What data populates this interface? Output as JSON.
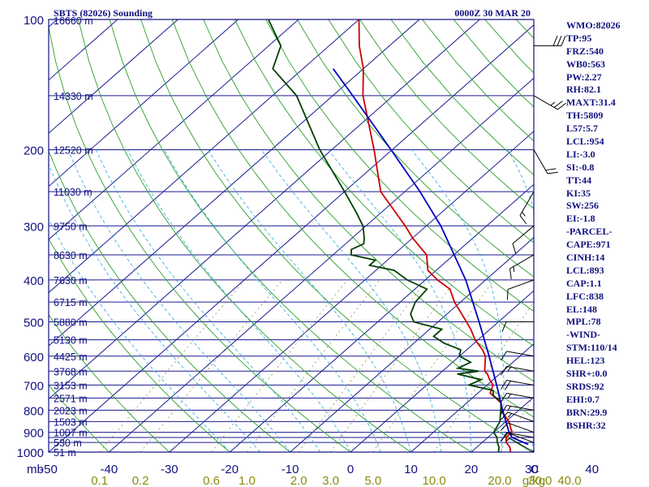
{
  "title": {
    "station": "SBTS (82026) Sounding",
    "time": "0000Z 30 MAR 20"
  },
  "colors": {
    "frame": "#101080",
    "isobar": "#1a1a90",
    "isotherm": "#1a1a90",
    "dry_adiabat": "#2aa02a",
    "moist_adiabat": "#40b0e0",
    "mixing_ratio": "#909050",
    "temperature": "#cc0000",
    "dewpoint": "#004000",
    "parcel": "#0000c0",
    "barb": "#000000"
  },
  "axes": {
    "pressure_unit_label": "mb",
    "pressure_labels": [
      100,
      200,
      300,
      400,
      500,
      600,
      700,
      800,
      900,
      1000
    ],
    "isobar_levels": [
      100,
      150,
      200,
      250,
      300,
      350,
      400,
      450,
      500,
      550,
      600,
      650,
      700,
      750,
      800,
      850,
      900,
      925,
      950,
      1000
    ],
    "height_labels": [
      {
        "p": 150,
        "text": "14330 m"
      },
      {
        "p": 200,
        "text": "12520 m"
      },
      {
        "p": 250,
        "text": "11030 m"
      },
      {
        "p": 300,
        "text": "9750 m"
      },
      {
        "p": 350,
        "text": "8630 m"
      },
      {
        "p": 400,
        "text": "7630 m"
      },
      {
        "p": 450,
        "text": "6715 m"
      },
      {
        "p": 500,
        "text": "5880 m"
      },
      {
        "p": 550,
        "text": "5130 m"
      },
      {
        "p": 600,
        "text": "4425 m"
      },
      {
        "p": 650,
        "text": "3768 m"
      },
      {
        "p": 700,
        "text": "3153 m"
      },
      {
        "p": 750,
        "text": "2571 m"
      },
      {
        "p": 800,
        "text": "2023 m"
      },
      {
        "p": 850,
        "text": "1503 m"
      },
      {
        "p": 900,
        "text": "1007 m"
      },
      {
        "p": 950,
        "text": "530 m"
      },
      {
        "p": 1000,
        "text": "51 m"
      }
    ],
    "top_height_label": "16660 m",
    "temperature_labels": [
      -50,
      -40,
      -30,
      -20,
      -10,
      0,
      10,
      20,
      30,
      40
    ],
    "temperature_end_label": "C",
    "mixing_ratio_labels": [
      "0.1",
      "0.2",
      "0.6",
      "1.0",
      "2.0",
      "3.0",
      "5.0",
      "10.0",
      "20.0",
      "30.0",
      "40.0"
    ],
    "mixing_ratio_unit": "g/kg",
    "skew_deg_per_log_decade": 81.4
  },
  "indices": [
    "WMO:82026",
    "TP:95",
    "FRZ:540",
    "WB0:563",
    "PW:2.27",
    "RH:82.1",
    "MAXT:31.4",
    "TH:5809",
    "L57:5.7",
    "LCL:954",
    "LI:-3.0",
    "SI:-0.8",
    "TT:44",
    "KI:35",
    "SW:256",
    "EI:-1.8",
    "-PARCEL-",
    "CAPE:971",
    "CINH:14",
    "LCL:893",
    "CAP:1.1",
    "LFC:838",
    "EL:148",
    "MPL:78",
    "-WIND-",
    "STM:110/14",
    "HEL:123",
    "SHR+:0.0",
    "SRDS:92",
    "EHI:0.7",
    "BRN:29.9",
    "BSHR:32"
  ],
  "chart_data": {
    "type": "skew-T log-P sounding",
    "title": "SBTS (82026) Sounding",
    "valid_time": "0000Z 30 MAR 20",
    "xlabel": "C",
    "ylabel": "mb",
    "ylim_mb": [
      1000,
      100
    ],
    "xlim_C_at_1000mb": [
      -50,
      30
    ],
    "series": [
      {
        "key": "temperature",
        "points": [
          [
            1000,
            26.5
          ],
          [
            975,
            25.5
          ],
          [
            950,
            24.0
          ],
          [
            925,
            23.0
          ],
          [
            900,
            23.0
          ],
          [
            850,
            20.5
          ],
          [
            800,
            17.0
          ],
          [
            770,
            15.7
          ],
          [
            730,
            12.0
          ],
          [
            700,
            11.0
          ],
          [
            680,
            9.4
          ],
          [
            660,
            8.0
          ],
          [
            650,
            7.0
          ],
          [
            620,
            5.4
          ],
          [
            600,
            4.3
          ],
          [
            580,
            2.6
          ],
          [
            550,
            -0.5
          ],
          [
            520,
            -3.2
          ],
          [
            500,
            -5.3
          ],
          [
            450,
            -11.0
          ],
          [
            420,
            -14.2
          ],
          [
            400,
            -18.0
          ],
          [
            380,
            -21.4
          ],
          [
            350,
            -24.5
          ],
          [
            320,
            -30.0
          ],
          [
            300,
            -33.5
          ],
          [
            250,
            -44.0
          ],
          [
            200,
            -53.0
          ],
          [
            150,
            -65.0
          ],
          [
            130,
            -70.0
          ],
          [
            115,
            -75.0
          ],
          [
            100,
            -80.0
          ]
        ]
      },
      {
        "key": "dewpoint",
        "points": [
          [
            1000,
            24.5
          ],
          [
            975,
            23.7
          ],
          [
            950,
            22.5
          ],
          [
            925,
            21.5
          ],
          [
            900,
            20.0
          ],
          [
            850,
            19.0
          ],
          [
            800,
            17.0
          ],
          [
            770,
            15.7
          ],
          [
            760,
            15.0
          ],
          [
            740,
            13.0
          ],
          [
            720,
            12.0
          ],
          [
            700,
            7.0
          ],
          [
            690,
            7.5
          ],
          [
            680,
            8.0
          ],
          [
            660,
            3.0
          ],
          [
            650,
            6.0
          ],
          [
            640,
            2.0
          ],
          [
            620,
            3.0
          ],
          [
            600,
            0.0
          ],
          [
            580,
            -1.0
          ],
          [
            560,
            -5.0
          ],
          [
            540,
            -8.0
          ],
          [
            520,
            -8.0
          ],
          [
            500,
            -14.0
          ],
          [
            480,
            -16.0
          ],
          [
            450,
            -17.5
          ],
          [
            420,
            -18.0
          ],
          [
            400,
            -23.0
          ],
          [
            380,
            -27.0
          ],
          [
            370,
            -32.0
          ],
          [
            360,
            -32.0
          ],
          [
            350,
            -37.0
          ],
          [
            340,
            -38.0
          ],
          [
            330,
            -37.0
          ],
          [
            320,
            -38.0
          ],
          [
            300,
            -40.5
          ],
          [
            280,
            -44.0
          ],
          [
            250,
            -50.0
          ],
          [
            200,
            -62.0
          ],
          [
            150,
            -76.0
          ],
          [
            130,
            -85.0
          ],
          [
            115,
            -88.0
          ],
          [
            100,
            -95.0
          ]
        ]
      },
      {
        "key": "parcel",
        "points": [
          [
            960,
            28.0
          ],
          [
            925,
            24.0
          ],
          [
            893,
            22.2
          ],
          [
            850,
            20.0
          ],
          [
            800,
            17.3
          ],
          [
            700,
            11.6
          ],
          [
            600,
            4.9
          ],
          [
            500,
            -3.2
          ],
          [
            400,
            -13.3
          ],
          [
            300,
            -27.6
          ],
          [
            250,
            -37.5
          ],
          [
            200,
            -50.2
          ],
          [
            150,
            -66.7
          ],
          [
            130,
            -75.0
          ]
        ]
      }
    ],
    "wind_barbs": [
      {
        "p": 1000,
        "dir": 120,
        "kt": 5
      },
      {
        "p": 950,
        "dir": 110,
        "kt": 10
      },
      {
        "p": 925,
        "dir": 100,
        "kt": 10
      },
      {
        "p": 900,
        "dir": 110,
        "kt": 10
      },
      {
        "p": 850,
        "dir": 110,
        "kt": 15
      },
      {
        "p": 800,
        "dir": 100,
        "kt": 15
      },
      {
        "p": 750,
        "dir": 100,
        "kt": 15
      },
      {
        "p": 700,
        "dir": 100,
        "kt": 20
      },
      {
        "p": 650,
        "dir": 100,
        "kt": 15
      },
      {
        "p": 600,
        "dir": 100,
        "kt": 10
      },
      {
        "p": 500,
        "dir": 90,
        "kt": 10
      },
      {
        "p": 400,
        "dir": 70,
        "kt": 10
      },
      {
        "p": 350,
        "dir": 60,
        "kt": 15
      },
      {
        "p": 300,
        "dir": 50,
        "kt": 10
      },
      {
        "p": 250,
        "dir": 30,
        "kt": 15
      },
      {
        "p": 200,
        "dir": 330,
        "kt": 20
      },
      {
        "p": 150,
        "dir": 300,
        "kt": 25
      },
      {
        "p": 115,
        "dir": 270,
        "kt": 30
      }
    ]
  }
}
